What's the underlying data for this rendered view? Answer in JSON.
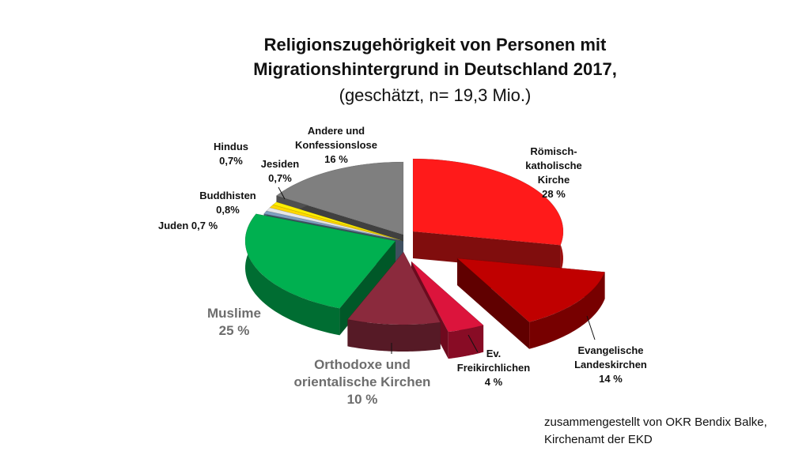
{
  "header": {
    "title_line1": "Religionszugehörigkeit von Personen mit",
    "title_line2": "Migrationshintergrund in Deutschland 2017,",
    "subtitle": "(geschätzt, n= 19,3 Mio.)"
  },
  "credit": {
    "line1": "zusammengestellt von OKR Bendix Balke,",
    "line2": "Kirchenamt der EKD"
  },
  "chart_data": {
    "type": "pie",
    "style": "3d-exploded",
    "title": "Religionszugehörigkeit von Personen mit Migrationshintergrund in Deutschland 2017,",
    "subtitle": "(geschätzt, n= 19,3 Mio.)",
    "slices": [
      {
        "name": "Römisch-katholische Kirche",
        "value": 28,
        "label_lines": [
          "Römisch-",
          "katholische",
          "Kirche",
          "28  %"
        ],
        "color": "#ff1a1a"
      },
      {
        "name": "Evangelische Landeskirchen",
        "value": 14,
        "label_lines": [
          "Evangelische",
          "Landeskirchen",
          "14 %"
        ],
        "color": "#c00000"
      },
      {
        "name": "Ev. Freikirchlichen",
        "value": 4,
        "label_lines": [
          "Ev.",
          "Freikirchlichen",
          "4 %"
        ],
        "color": "#dc143c"
      },
      {
        "name": "Orthodoxe und orientalische Kirchen",
        "value": 10,
        "label_lines": [
          "Orthodoxe und",
          "orientalische Kirchen",
          "10  %"
        ],
        "color": "#8b2a3d"
      },
      {
        "name": "Muslime",
        "value": 25,
        "label_lines": [
          "Muslime",
          "25 %"
        ],
        "color": "#00b050"
      },
      {
        "name": "Juden",
        "value": 0.7,
        "label_lines": [
          "Juden 0,7 %"
        ],
        "color": "#7f9fbf"
      },
      {
        "name": "Buddhisten",
        "value": 0.8,
        "label_lines": [
          "Buddhisten",
          "0,8%"
        ],
        "color": "#e6e6e6"
      },
      {
        "name": "Hindus",
        "value": 0.7,
        "label_lines": [
          "Hindus",
          "0,7%"
        ],
        "color": "#ffd700"
      },
      {
        "name": "Jesiden",
        "value": 0.7,
        "label_lines": [
          "Jesiden",
          "0,7%"
        ],
        "color": "#ffee00"
      },
      {
        "name": "Andere und Konfessionslose",
        "value": 16,
        "label_lines": [
          "Andere und",
          "Konfessionslose",
          "16 %"
        ],
        "color": "#7f7f7f"
      }
    ],
    "unit": "%"
  }
}
